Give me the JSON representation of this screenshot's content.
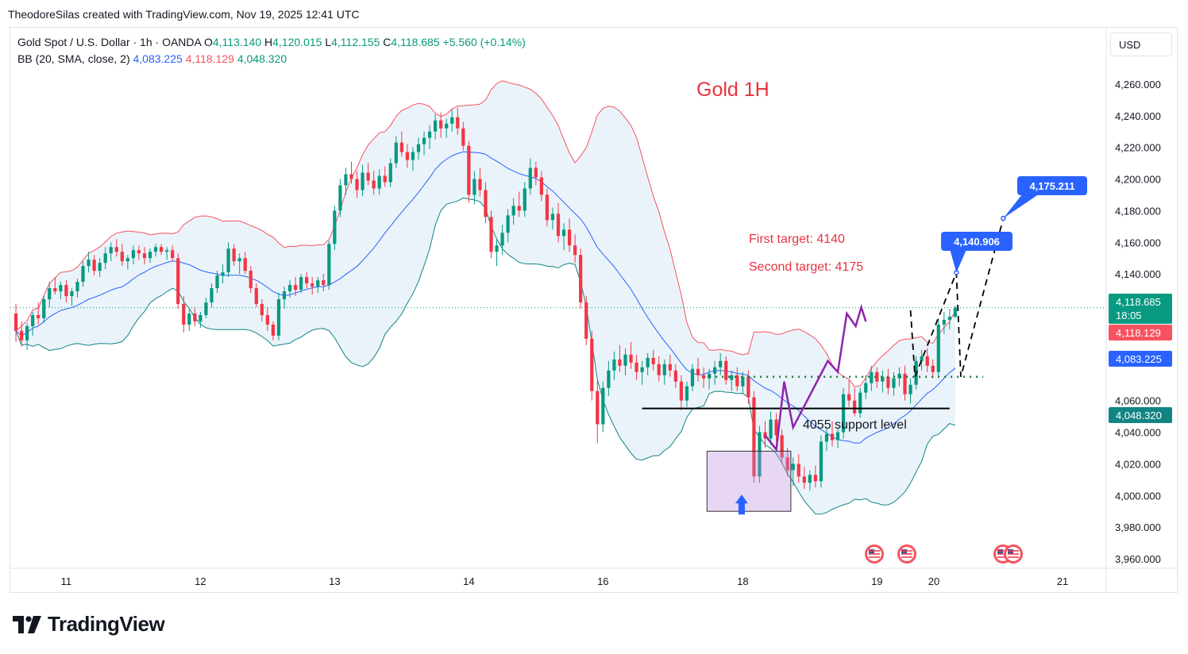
{
  "header": {
    "credit": "TheodoreSilas created with TradingView.com, Nov 19, 2025 12:41 UTC"
  },
  "legend": {
    "symbol": "Gold Spot / U.S. Dollar · 1h · OANDA",
    "open_label": "O",
    "open": "4,113.140",
    "high_label": "H",
    "high": "4,120.015",
    "low_label": "L",
    "low": "4,112.155",
    "close_label": "C",
    "close": "4,118.685",
    "change": "+5.560 (+0.14%)",
    "indicator": "BB (20, SMA, close, 2)",
    "bb_basis": "4,083.225",
    "bb_upper": "4,118.129",
    "bb_lower": "4,048.320"
  },
  "currency_button": "USD",
  "brand": {
    "name": "TradingView",
    "logo_icon": "tradingview-logo-icon"
  },
  "colors": {
    "up": "#089981",
    "down": "#f23645",
    "basis": "#2962ff",
    "upper_band": "#f7525f",
    "lower_band": "#138484",
    "band_fill": "#eaf3fa",
    "annotation_red": "#e8333f",
    "target_bubble": "#2962ff",
    "pattern_line": "#8e24aa"
  },
  "chart_data": {
    "type": "candlestick",
    "title": "Gold 1H",
    "y_axis": {
      "ticks": [
        3960,
        3980,
        4000,
        4020,
        4040,
        4060,
        4140,
        4160,
        4180,
        4200,
        4220,
        4240,
        4260
      ],
      "tick_labels": [
        "3,960.000",
        "3,980.000",
        "4,000.000",
        "4,020.000",
        "4,040.000",
        "4,060.000",
        "4,140.000",
        "4,160.000",
        "4,180.000",
        "4,200.000",
        "4,220.000",
        "4,240.000",
        "4,260.000"
      ],
      "range": [
        3956,
        4277
      ]
    },
    "x_axis": {
      "tick_labels": [
        "11",
        "12",
        "13",
        "14",
        "16",
        "18",
        "19",
        "20",
        "21"
      ]
    },
    "price_tags": [
      {
        "label": "4,118.685",
        "sub": "18:05",
        "value": 4118.685,
        "color": "#089981",
        "kind": "last-price"
      },
      {
        "label": "4,118.129",
        "value": 4118.129,
        "color": "#f7525f",
        "kind": "bb-upper"
      },
      {
        "label": "4,083.225",
        "value": 4083.225,
        "color": "#2962ff",
        "kind": "bb-basis"
      },
      {
        "label": "4,048.320",
        "value": 4048.32,
        "color": "#138484",
        "kind": "bb-lower"
      }
    ],
    "annotations": {
      "chart_title": "Gold 1H",
      "first_target": "First target: 4140",
      "second_target": "Second target: 4175",
      "support_label": "4055 support level",
      "support_level": 4055,
      "breakout_level": 4075,
      "target_bubble_1": "4,140.906",
      "target_bubble_2": "4,175.211",
      "projected_path": [
        {
          "time": 160.0,
          "price": 4117
        },
        {
          "time": 160.8,
          "price": 4075
        },
        {
          "time": 168.2,
          "price": 4140.906
        },
        {
          "time": 169.0,
          "price": 4075
        },
        {
          "time": 176.6,
          "price": 4175.211
        }
      ],
      "zigzag_path": [
        {
          "time": 134.0,
          "price": 4038
        },
        {
          "time": 136.0,
          "price": 4029
        },
        {
          "time": 137.4,
          "price": 4072
        },
        {
          "time": 139.0,
          "price": 4043
        },
        {
          "time": 145.2,
          "price": 4085
        },
        {
          "time": 147.0,
          "price": 4078
        },
        {
          "time": 148.6,
          "price": 4115
        },
        {
          "time": 150.2,
          "price": 4107
        },
        {
          "time": 151.2,
          "price": 4119
        },
        {
          "time": 152.0,
          "price": 4110
        }
      ],
      "highlight_box": {
        "time_start": 123.6,
        "time_end": 138.6,
        "price_low": 3990,
        "price_high": 4028
      },
      "event_markers": 4
    },
    "ohlc": [
      [
        4115,
        4121,
        4097,
        4104
      ],
      [
        4104,
        4110,
        4094,
        4098
      ],
      [
        4098,
        4109,
        4092,
        4107
      ],
      [
        4107,
        4116,
        4101,
        4114
      ],
      [
        4114,
        4122,
        4108,
        4112
      ],
      [
        4112,
        4126,
        4109,
        4124
      ],
      [
        4124,
        4135,
        4119,
        4131
      ],
      [
        4131,
        4138,
        4127,
        4129
      ],
      [
        4129,
        4135,
        4124,
        4133
      ],
      [
        4133,
        4136,
        4122,
        4126
      ],
      [
        4126,
        4131,
        4120,
        4129
      ],
      [
        4129,
        4137,
        4125,
        4135
      ],
      [
        4135,
        4148,
        4132,
        4145
      ],
      [
        4145,
        4154,
        4141,
        4149
      ],
      [
        4149,
        4152,
        4139,
        4142
      ],
      [
        4142,
        4150,
        4138,
        4147
      ],
      [
        4147,
        4157,
        4143,
        4153
      ],
      [
        4153,
        4160,
        4148,
        4157
      ],
      [
        4157,
        4162,
        4151,
        4154
      ],
      [
        4154,
        4159,
        4145,
        4148
      ],
      [
        4148,
        4152,
        4143,
        4150
      ],
      [
        4150,
        4158,
        4146,
        4155
      ],
      [
        4155,
        4158,
        4149,
        4153
      ],
      [
        4153,
        4157,
        4146,
        4150
      ],
      [
        4150,
        4156,
        4147,
        4154
      ],
      [
        4154,
        4159,
        4151,
        4157
      ],
      [
        4157,
        4159,
        4152,
        4154
      ],
      [
        4154,
        4157,
        4149,
        4155
      ],
      [
        4155,
        4158,
        4148,
        4150
      ],
      [
        4150,
        4153,
        4118,
        4121
      ],
      [
        4121,
        4126,
        4103,
        4108
      ],
      [
        4108,
        4118,
        4104,
        4115
      ],
      [
        4115,
        4119,
        4107,
        4110
      ],
      [
        4110,
        4116,
        4106,
        4114
      ],
      [
        4114,
        4125,
        4112,
        4122
      ],
      [
        4122,
        4134,
        4119,
        4131
      ],
      [
        4131,
        4142,
        4128,
        4139
      ],
      [
        4139,
        4146,
        4134,
        4141
      ],
      [
        4141,
        4160,
        4138,
        4156
      ],
      [
        4156,
        4159,
        4145,
        4148
      ],
      [
        4148,
        4153,
        4140,
        4150
      ],
      [
        4150,
        4154,
        4140,
        4142
      ],
      [
        4142,
        4145,
        4128,
        4131
      ],
      [
        4131,
        4134,
        4119,
        4121
      ],
      [
        4121,
        4124,
        4110,
        4114
      ],
      [
        4114,
        4119,
        4104,
        4108
      ],
      [
        4108,
        4110,
        4098,
        4101
      ],
      [
        4101,
        4128,
        4098,
        4124
      ],
      [
        4124,
        4132,
        4118,
        4129
      ],
      [
        4129,
        4136,
        4125,
        4133
      ],
      [
        4133,
        4138,
        4126,
        4130
      ],
      [
        4130,
        4140,
        4128,
        4138
      ],
      [
        4138,
        4141,
        4131,
        4134
      ],
      [
        4134,
        4138,
        4127,
        4132
      ],
      [
        4132,
        4138,
        4128,
        4136
      ],
      [
        4136,
        4140,
        4129,
        4133
      ],
      [
        4133,
        4161,
        4130,
        4159
      ],
      [
        4159,
        4183,
        4155,
        4180
      ],
      [
        4180,
        4200,
        4176,
        4196
      ],
      [
        4196,
        4207,
        4190,
        4203
      ],
      [
        4203,
        4211,
        4197,
        4200
      ],
      [
        4200,
        4205,
        4188,
        4193
      ],
      [
        4193,
        4209,
        4189,
        4204
      ],
      [
        4204,
        4210,
        4196,
        4199
      ],
      [
        4199,
        4205,
        4190,
        4194
      ],
      [
        4194,
        4206,
        4190,
        4202
      ],
      [
        4202,
        4208,
        4195,
        4198
      ],
      [
        4198,
        4213,
        4195,
        4210
      ],
      [
        4210,
        4227,
        4207,
        4223
      ],
      [
        4223,
        4230,
        4214,
        4217
      ],
      [
        4217,
        4222,
        4207,
        4212
      ],
      [
        4212,
        4220,
        4205,
        4217
      ],
      [
        4217,
        4226,
        4212,
        4222
      ],
      [
        4222,
        4230,
        4215,
        4226
      ],
      [
        4226,
        4234,
        4219,
        4230
      ],
      [
        4230,
        4241,
        4225,
        4237
      ],
      [
        4237,
        4242,
        4226,
        4232
      ],
      [
        4232,
        4238,
        4226,
        4235
      ],
      [
        4235,
        4244,
        4230,
        4239
      ],
      [
        4239,
        4245,
        4228,
        4232
      ],
      [
        4232,
        4236,
        4218,
        4221
      ],
      [
        4221,
        4224,
        4185,
        4190
      ],
      [
        4190,
        4205,
        4184,
        4200
      ],
      [
        4200,
        4207,
        4189,
        4193
      ],
      [
        4193,
        4198,
        4172,
        4176
      ],
      [
        4176,
        4180,
        4150,
        4154
      ],
      [
        4154,
        4162,
        4145,
        4158
      ],
      [
        4158,
        4171,
        4152,
        4166
      ],
      [
        4166,
        4181,
        4160,
        4177
      ],
      [
        4177,
        4188,
        4171,
        4183
      ],
      [
        4183,
        4192,
        4176,
        4180
      ],
      [
        4180,
        4198,
        4176,
        4194
      ],
      [
        4194,
        4213,
        4190,
        4207
      ],
      [
        4207,
        4211,
        4196,
        4201
      ],
      [
        4201,
        4205,
        4186,
        4190
      ],
      [
        4190,
        4194,
        4170,
        4174
      ],
      [
        4174,
        4182,
        4168,
        4178
      ],
      [
        4178,
        4185,
        4160,
        4164
      ],
      [
        4164,
        4172,
        4155,
        4168
      ],
      [
        4168,
        4175,
        4154,
        4158
      ],
      [
        4158,
        4165,
        4147,
        4152
      ],
      [
        4152,
        4156,
        4118,
        4122
      ],
      [
        4122,
        4126,
        4095,
        4099
      ],
      [
        4099,
        4104,
        4060,
        4066
      ],
      [
        4066,
        4074,
        4033,
        4045
      ],
      [
        4045,
        4072,
        4040,
        4068
      ],
      [
        4068,
        4085,
        4063,
        4079
      ],
      [
        4079,
        4091,
        4073,
        4086
      ],
      [
        4086,
        4095,
        4078,
        4082
      ],
      [
        4082,
        4093,
        4076,
        4089
      ],
      [
        4089,
        4097,
        4080,
        4084
      ],
      [
        4084,
        4089,
        4073,
        4078
      ],
      [
        4078,
        4085,
        4070,
        4081
      ],
      [
        4081,
        4090,
        4076,
        4087
      ],
      [
        4087,
        4092,
        4079,
        4083
      ],
      [
        4083,
        4088,
        4072,
        4076
      ],
      [
        4076,
        4086,
        4070,
        4083
      ],
      [
        4083,
        4089,
        4075,
        4079
      ],
      [
        4079,
        4083,
        4068,
        4072
      ],
      [
        4072,
        4076,
        4054,
        4060
      ],
      [
        4060,
        4072,
        4056,
        4069
      ],
      [
        4069,
        4083,
        4066,
        4080
      ],
      [
        4080,
        4087,
        4072,
        4076
      ],
      [
        4076,
        4081,
        4068,
        4074
      ],
      [
        4074,
        4080,
        4067,
        4077
      ],
      [
        4077,
        4085,
        4070,
        4081
      ],
      [
        4081,
        4090,
        4076,
        4085
      ],
      [
        4085,
        4088,
        4070,
        4073
      ],
      [
        4073,
        4079,
        4066,
        4076
      ],
      [
        4076,
        4081,
        4066,
        4069
      ],
      [
        4069,
        4078,
        4064,
        4075
      ],
      [
        4075,
        4079,
        4058,
        4062
      ],
      [
        4062,
        4066,
        4008,
        4012
      ],
      [
        4012,
        4044,
        4008,
        4040
      ],
      [
        4040,
        4047,
        4030,
        4036
      ],
      [
        4036,
        4053,
        4032,
        4048
      ],
      [
        4048,
        4052,
        4034,
        4038
      ],
      [
        4038,
        4042,
        4020,
        4024
      ],
      [
        4024,
        4030,
        4012,
        4016
      ],
      [
        4016,
        4024,
        4006,
        4020
      ],
      [
        4020,
        4026,
        4008,
        4012
      ],
      [
        4012,
        4018,
        4004,
        4008
      ],
      [
        4008,
        4016,
        4003,
        4013
      ],
      [
        4013,
        4019,
        4005,
        4009
      ],
      [
        4009,
        4038,
        4005,
        4034
      ],
      [
        4034,
        4043,
        4028,
        4039
      ],
      [
        4039,
        4047,
        4031,
        4035
      ],
      [
        4035,
        4043,
        4030,
        4040
      ],
      [
        4040,
        4068,
        4036,
        4064
      ],
      [
        4064,
        4073,
        4056,
        4060
      ],
      [
        4060,
        4068,
        4050,
        4052
      ],
      [
        4052,
        4068,
        4049,
        4065
      ],
      [
        4065,
        4076,
        4061,
        4071
      ],
      [
        4071,
        4082,
        4066,
        4078
      ],
      [
        4078,
        4081,
        4068,
        4072
      ],
      [
        4072,
        4079,
        4065,
        4075
      ],
      [
        4075,
        4080,
        4064,
        4068
      ],
      [
        4068,
        4078,
        4063,
        4074
      ],
      [
        4074,
        4081,
        4069,
        4077
      ],
      [
        4077,
        4082,
        4060,
        4064
      ],
      [
        4064,
        4074,
        4058,
        4070
      ],
      [
        4070,
        4088,
        4067,
        4085
      ],
      [
        4085,
        4092,
        4079,
        4088
      ],
      [
        4088,
        4093,
        4078,
        4082
      ],
      [
        4082,
        4086,
        4074,
        4078
      ],
      [
        4078,
        4112,
        4075,
        4108
      ],
      [
        4108,
        4116,
        4102,
        4111
      ],
      [
        4111,
        4118,
        4105,
        4113
      ],
      [
        4113,
        4120,
        4112,
        4118.685
      ]
    ]
  }
}
